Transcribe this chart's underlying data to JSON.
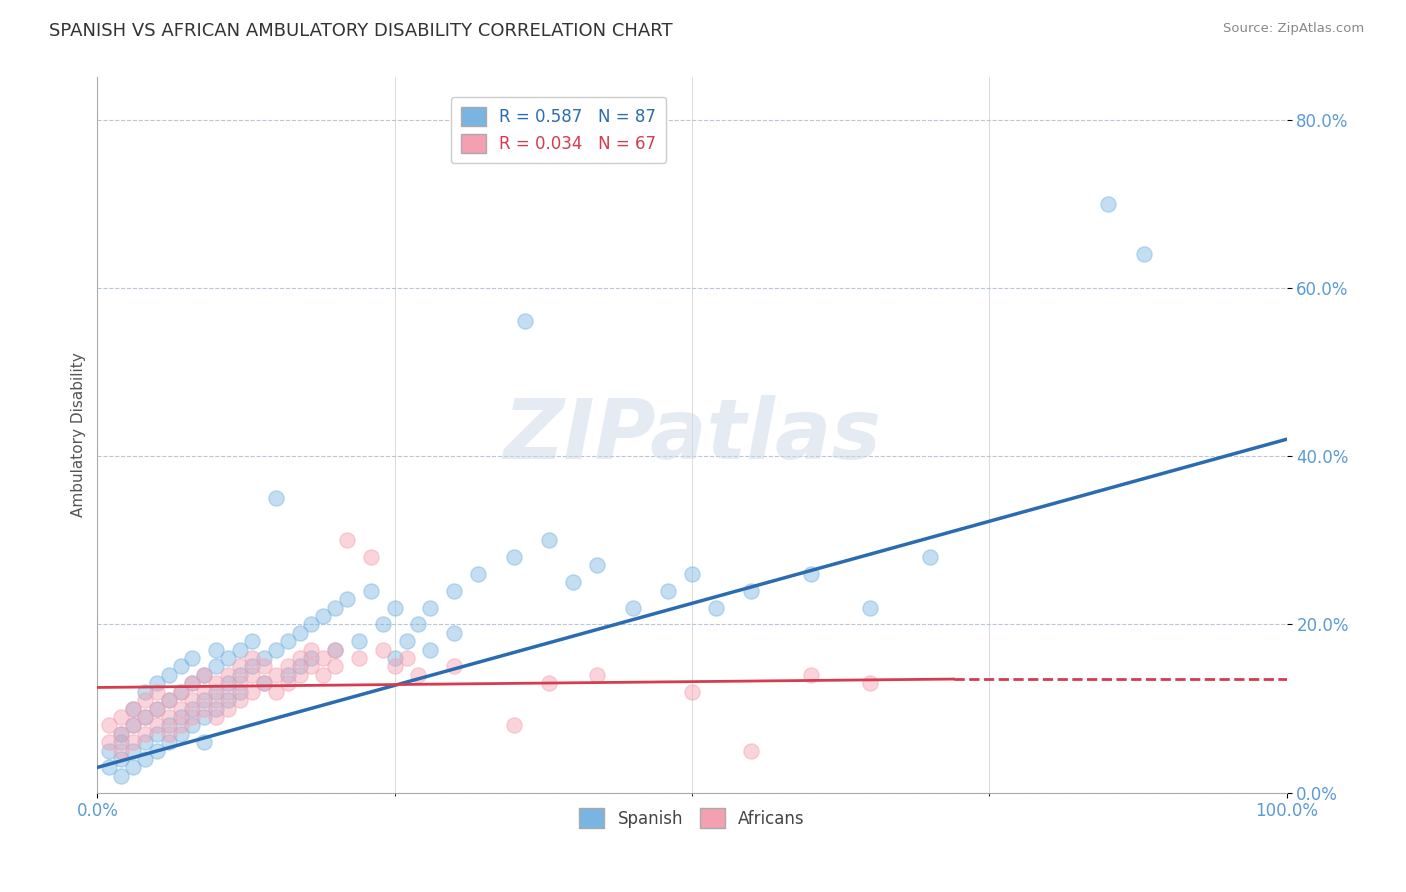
{
  "title": "SPANISH VS AFRICAN AMBULATORY DISABILITY CORRELATION CHART",
  "source": "Source: ZipAtlas.com",
  "xlabel": "",
  "ylabel": "Ambulatory Disability",
  "xlim": [
    0.0,
    1.0
  ],
  "ylim": [
    0.0,
    0.85
  ],
  "xtick_labels": [
    "0.0%",
    "100.0%"
  ],
  "ytick_labels": [
    "0.0%",
    "20.0%",
    "40.0%",
    "60.0%",
    "80.0%"
  ],
  "ytick_values": [
    0.0,
    0.2,
    0.4,
    0.6,
    0.8
  ],
  "legend_R_spanish": "R = 0.587",
  "legend_N_spanish": "N = 87",
  "legend_R_african": "R = 0.034",
  "legend_N_african": "N = 67",
  "spanish_color": "#7ab4e0",
  "african_color": "#f4a0b0",
  "trend_spanish_color": "#2b6cb0",
  "trend_african_color": "#d63b50",
  "background_color": "#ffffff",
  "watermark": "ZIPatlas",
  "title_fontsize": 13,
  "label_fontsize": 11,
  "tick_fontsize": 12,
  "tick_color": "#5b9bd5",
  "spanish_points": [
    [
      0.01,
      0.03
    ],
    [
      0.01,
      0.05
    ],
    [
      0.02,
      0.04
    ],
    [
      0.02,
      0.06
    ],
    [
      0.02,
      0.02
    ],
    [
      0.02,
      0.07
    ],
    [
      0.03,
      0.05
    ],
    [
      0.03,
      0.08
    ],
    [
      0.03,
      0.03
    ],
    [
      0.03,
      0.1
    ],
    [
      0.04,
      0.06
    ],
    [
      0.04,
      0.09
    ],
    [
      0.04,
      0.04
    ],
    [
      0.04,
      0.12
    ],
    [
      0.05,
      0.07
    ],
    [
      0.05,
      0.1
    ],
    [
      0.05,
      0.05
    ],
    [
      0.05,
      0.13
    ],
    [
      0.06,
      0.08
    ],
    [
      0.06,
      0.11
    ],
    [
      0.06,
      0.06
    ],
    [
      0.06,
      0.14
    ],
    [
      0.07,
      0.09
    ],
    [
      0.07,
      0.12
    ],
    [
      0.07,
      0.07
    ],
    [
      0.07,
      0.15
    ],
    [
      0.08,
      0.1
    ],
    [
      0.08,
      0.13
    ],
    [
      0.08,
      0.08
    ],
    [
      0.08,
      0.16
    ],
    [
      0.09,
      0.11
    ],
    [
      0.09,
      0.14
    ],
    [
      0.09,
      0.09
    ],
    [
      0.09,
      0.06
    ],
    [
      0.1,
      0.12
    ],
    [
      0.1,
      0.15
    ],
    [
      0.1,
      0.1
    ],
    [
      0.1,
      0.17
    ],
    [
      0.11,
      0.13
    ],
    [
      0.11,
      0.16
    ],
    [
      0.11,
      0.11
    ],
    [
      0.12,
      0.14
    ],
    [
      0.12,
      0.17
    ],
    [
      0.12,
      0.12
    ],
    [
      0.13,
      0.15
    ],
    [
      0.13,
      0.18
    ],
    [
      0.14,
      0.16
    ],
    [
      0.14,
      0.13
    ],
    [
      0.15,
      0.17
    ],
    [
      0.15,
      0.35
    ],
    [
      0.16,
      0.18
    ],
    [
      0.16,
      0.14
    ],
    [
      0.17,
      0.19
    ],
    [
      0.17,
      0.15
    ],
    [
      0.18,
      0.2
    ],
    [
      0.18,
      0.16
    ],
    [
      0.19,
      0.21
    ],
    [
      0.2,
      0.22
    ],
    [
      0.2,
      0.17
    ],
    [
      0.21,
      0.23
    ],
    [
      0.22,
      0.18
    ],
    [
      0.23,
      0.24
    ],
    [
      0.24,
      0.2
    ],
    [
      0.25,
      0.22
    ],
    [
      0.25,
      0.16
    ],
    [
      0.26,
      0.18
    ],
    [
      0.27,
      0.2
    ],
    [
      0.28,
      0.22
    ],
    [
      0.28,
      0.17
    ],
    [
      0.3,
      0.24
    ],
    [
      0.3,
      0.19
    ],
    [
      0.32,
      0.26
    ],
    [
      0.35,
      0.28
    ],
    [
      0.36,
      0.56
    ],
    [
      0.38,
      0.3
    ],
    [
      0.4,
      0.25
    ],
    [
      0.42,
      0.27
    ],
    [
      0.45,
      0.22
    ],
    [
      0.48,
      0.24
    ],
    [
      0.5,
      0.26
    ],
    [
      0.52,
      0.22
    ],
    [
      0.55,
      0.24
    ],
    [
      0.6,
      0.26
    ],
    [
      0.65,
      0.22
    ],
    [
      0.7,
      0.28
    ],
    [
      0.85,
      0.7
    ],
    [
      0.88,
      0.64
    ]
  ],
  "african_points": [
    [
      0.01,
      0.06
    ],
    [
      0.01,
      0.08
    ],
    [
      0.02,
      0.05
    ],
    [
      0.02,
      0.07
    ],
    [
      0.02,
      0.09
    ],
    [
      0.03,
      0.06
    ],
    [
      0.03,
      0.08
    ],
    [
      0.03,
      0.1
    ],
    [
      0.04,
      0.07
    ],
    [
      0.04,
      0.09
    ],
    [
      0.04,
      0.11
    ],
    [
      0.05,
      0.08
    ],
    [
      0.05,
      0.1
    ],
    [
      0.05,
      0.12
    ],
    [
      0.06,
      0.07
    ],
    [
      0.06,
      0.09
    ],
    [
      0.06,
      0.11
    ],
    [
      0.07,
      0.08
    ],
    [
      0.07,
      0.1
    ],
    [
      0.07,
      0.12
    ],
    [
      0.08,
      0.09
    ],
    [
      0.08,
      0.11
    ],
    [
      0.08,
      0.13
    ],
    [
      0.09,
      0.1
    ],
    [
      0.09,
      0.12
    ],
    [
      0.09,
      0.14
    ],
    [
      0.1,
      0.09
    ],
    [
      0.1,
      0.11
    ],
    [
      0.1,
      0.13
    ],
    [
      0.11,
      0.1
    ],
    [
      0.11,
      0.12
    ],
    [
      0.11,
      0.14
    ],
    [
      0.12,
      0.11
    ],
    [
      0.12,
      0.13
    ],
    [
      0.12,
      0.15
    ],
    [
      0.13,
      0.12
    ],
    [
      0.13,
      0.14
    ],
    [
      0.13,
      0.16
    ],
    [
      0.14,
      0.13
    ],
    [
      0.14,
      0.15
    ],
    [
      0.15,
      0.14
    ],
    [
      0.15,
      0.12
    ],
    [
      0.16,
      0.15
    ],
    [
      0.16,
      0.13
    ],
    [
      0.17,
      0.16
    ],
    [
      0.17,
      0.14
    ],
    [
      0.18,
      0.17
    ],
    [
      0.18,
      0.15
    ],
    [
      0.19,
      0.16
    ],
    [
      0.19,
      0.14
    ],
    [
      0.2,
      0.17
    ],
    [
      0.2,
      0.15
    ],
    [
      0.21,
      0.3
    ],
    [
      0.22,
      0.16
    ],
    [
      0.23,
      0.28
    ],
    [
      0.24,
      0.17
    ],
    [
      0.25,
      0.15
    ],
    [
      0.26,
      0.16
    ],
    [
      0.27,
      0.14
    ],
    [
      0.3,
      0.15
    ],
    [
      0.35,
      0.08
    ],
    [
      0.38,
      0.13
    ],
    [
      0.42,
      0.14
    ],
    [
      0.5,
      0.12
    ],
    [
      0.55,
      0.05
    ],
    [
      0.6,
      0.14
    ],
    [
      0.65,
      0.13
    ]
  ],
  "trend_spanish_x0": 0.0,
  "trend_spanish_y0": 0.03,
  "trend_spanish_x1": 1.0,
  "trend_spanish_y1": 0.42,
  "trend_african_x0": 0.0,
  "trend_african_y0": 0.125,
  "trend_african_x1": 0.72,
  "trend_african_y1": 0.135,
  "trend_african_dash_x0": 0.72,
  "trend_african_dash_y0": 0.135,
  "trend_african_dash_x1": 1.0,
  "trend_african_dash_y1": 0.135
}
